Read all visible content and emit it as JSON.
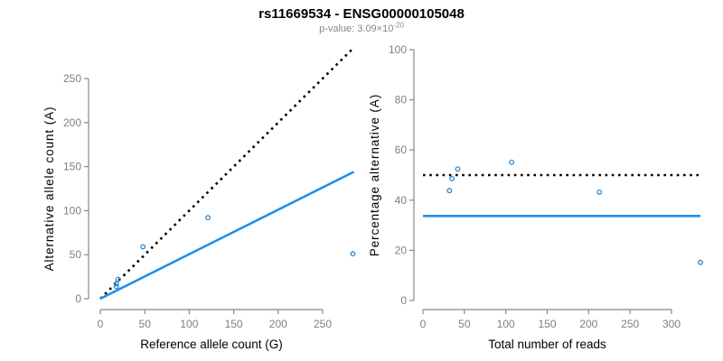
{
  "figure": {
    "title": "rs11669534 - ENSG00000105048",
    "p_value_prefix": "p-value: 3.09×10",
    "p_value_exponent": "-20"
  },
  "colors": {
    "solid_line_blue": "#1f8fee",
    "point_blue": "#2b87cf",
    "dotted_line_black": "#000000",
    "axis_gray": "#888888",
    "tick_label_gray": "#7f7f7f",
    "subtitle_gray": "#878787"
  },
  "chart_data": [
    {
      "type": "scatter",
      "panel": "left",
      "xlabel": "Reference allele count (G)",
      "ylabel": "Alternative allele count (A)",
      "xticks": [
        0,
        50,
        100,
        150,
        200,
        250
      ],
      "yticks": [
        0,
        50,
        100,
        150,
        200,
        250
      ],
      "xlim": [
        0,
        290
      ],
      "ylim": [
        0,
        287
      ],
      "grid": false,
      "legend": "none",
      "points": [
        [
          18,
          14
        ],
        [
          18,
          17
        ],
        [
          20,
          22
        ],
        [
          48,
          59
        ],
        [
          121,
          92
        ],
        [
          284,
          51
        ]
      ],
      "lines": [
        {
          "name": "identity-line",
          "style": "dotted",
          "color": "#000000",
          "width": 2.6,
          "from": [
            0,
            0
          ],
          "to": [
            283,
            283
          ]
        },
        {
          "name": "expected-ratio-line",
          "style": "solid",
          "color": "#1f8fee",
          "width": 2.6,
          "from": [
            0,
            0
          ],
          "to": [
            285,
            144
          ]
        }
      ]
    },
    {
      "type": "scatter",
      "panel": "right",
      "xlabel": "Total number of reads",
      "ylabel": "Percentage alternative (A)",
      "xticks": [
        0,
        50,
        100,
        150,
        200,
        250,
        300
      ],
      "yticks": [
        0,
        20,
        40,
        60,
        80,
        100
      ],
      "xlim": [
        0,
        340
      ],
      "ylim": [
        0,
        100
      ],
      "grid": false,
      "legend": "none",
      "points": [
        [
          32,
          43.8
        ],
        [
          35,
          48.6
        ],
        [
          42,
          52.4
        ],
        [
          107,
          55.1
        ],
        [
          213,
          43.2
        ],
        [
          335,
          15.2
        ]
      ],
      "lines": [
        {
          "name": "fifty-percent-line",
          "style": "dotted",
          "color": "#000000",
          "width": 2.6,
          "from": [
            0,
            50
          ],
          "to": [
            335,
            50
          ]
        },
        {
          "name": "expected-percentage-line",
          "style": "solid",
          "color": "#1f8fee",
          "width": 2.6,
          "from": [
            0,
            33.7
          ],
          "to": [
            335,
            33.7
          ]
        }
      ]
    }
  ]
}
